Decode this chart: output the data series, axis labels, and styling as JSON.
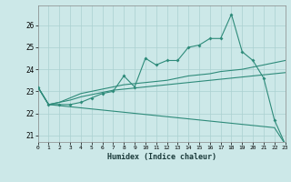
{
  "xlabel": "Humidex (Indice chaleur)",
  "bg_color": "#cce8e8",
  "grid_color": "#aad0d0",
  "line_color": "#2e8b7a",
  "x_values": [
    0,
    1,
    2,
    3,
    4,
    5,
    6,
    7,
    8,
    9,
    10,
    11,
    12,
    13,
    14,
    15,
    16,
    17,
    18,
    19,
    20,
    21,
    22,
    23
  ],
  "line1_y": [
    23.2,
    22.4,
    22.4,
    22.4,
    22.5,
    22.7,
    22.9,
    23.0,
    23.7,
    23.2,
    24.5,
    24.2,
    24.4,
    24.4,
    25.0,
    25.1,
    25.4,
    25.4,
    26.5,
    24.8,
    24.4,
    23.6,
    21.7,
    20.6
  ],
  "line2_y": [
    23.2,
    22.4,
    22.5,
    22.7,
    22.9,
    23.0,
    23.1,
    23.2,
    23.3,
    23.35,
    23.4,
    23.45,
    23.5,
    23.6,
    23.7,
    23.75,
    23.8,
    23.9,
    23.95,
    24.0,
    24.1,
    24.2,
    24.3,
    24.4
  ],
  "line3_y": [
    23.2,
    22.4,
    22.5,
    22.6,
    22.75,
    22.85,
    22.95,
    23.05,
    23.1,
    23.15,
    23.2,
    23.25,
    23.3,
    23.35,
    23.4,
    23.45,
    23.5,
    23.55,
    23.6,
    23.65,
    23.7,
    23.75,
    23.8,
    23.85
  ],
  "line4_y": [
    23.2,
    22.4,
    22.35,
    22.3,
    22.25,
    22.2,
    22.15,
    22.1,
    22.05,
    22.0,
    21.95,
    21.9,
    21.85,
    21.8,
    21.75,
    21.7,
    21.65,
    21.6,
    21.55,
    21.5,
    21.45,
    21.4,
    21.35,
    20.6
  ],
  "xlim": [
    0,
    23
  ],
  "ylim": [
    20.7,
    26.9
  ],
  "yticks": [
    21,
    22,
    23,
    24,
    25,
    26
  ],
  "xticks": [
    0,
    1,
    2,
    3,
    4,
    5,
    6,
    7,
    8,
    9,
    10,
    11,
    12,
    13,
    14,
    15,
    16,
    17,
    18,
    19,
    20,
    21,
    22,
    23
  ]
}
